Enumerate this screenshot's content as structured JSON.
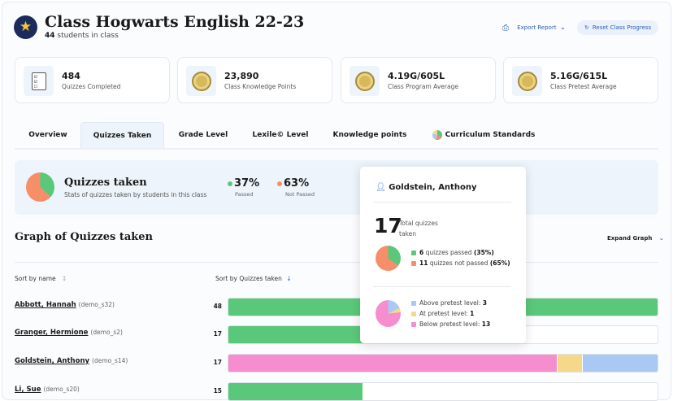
{
  "header": {
    "title": "Class Hogwarts English 22-23",
    "student_count": "44",
    "students_suffix": "students in class",
    "export_label": "Export Report",
    "reset_label": "Reset Class Progress"
  },
  "stats": [
    {
      "value": "484",
      "label": "Quizzes Completed",
      "icon": "quiz-checklist-icon"
    },
    {
      "value": "23,890",
      "label": "Class Knowledge Points",
      "icon": "medal-icon"
    },
    {
      "value": "4.19G/605L",
      "label": "Class Program Average",
      "icon": "medal-icon"
    },
    {
      "value": "5.16G/615L",
      "label": "Class Pretest Average",
      "icon": "medal-icon"
    }
  ],
  "tabs": [
    {
      "label": "Overview"
    },
    {
      "label": "Quizzes Taken",
      "active": true
    },
    {
      "label": "Grade Level"
    },
    {
      "label": "Lexile© Level"
    },
    {
      "label": "Knowledge points"
    },
    {
      "label": "Curriculum Standards"
    }
  ],
  "summary": {
    "title": "Quizzes taken",
    "subtitle": "Stats of quizzes taken by students in this class",
    "passed_pct": "37%",
    "passed_label": "Passed",
    "not_passed_pct": "63%",
    "not_passed_label": "Not Passed"
  },
  "graph": {
    "title": "Graph of Quizzes taken",
    "expand_label": "Expand Graph",
    "sort_name": "Sort by name",
    "sort_quizzes": "Sort by Quizzes taken"
  },
  "colors": {
    "passed": "#5ac87a",
    "not_passed": "#f68e6a",
    "above": "#a9c8f4",
    "at": "#f4d98a",
    "below": "#f58dce"
  },
  "rows": [
    {
      "name": "Abbott, Hannah",
      "id": "(demo_s32)",
      "count": "48",
      "quizzes": 48
    },
    {
      "name": "Granger, Hermione",
      "id": "(demo_s2)",
      "count": "17",
      "quizzes": 17
    },
    {
      "name": "Goldstein, Anthony",
      "id": "(demo_s14)",
      "count": "17",
      "quizzes": 17,
      "pretest": {
        "below": 13,
        "at": 1,
        "above": 3
      }
    },
    {
      "name": "Li, Sue",
      "id": "(demo_s20)",
      "count": "15",
      "quizzes": 15
    }
  ],
  "tooltip": {
    "student": "Goldstein, Anthony",
    "total": "17",
    "total_label_1": "Total quizzes",
    "total_label_2": "taken",
    "passed_count": "6",
    "passed_text": "quizzes passed",
    "passed_pct": "(35%)",
    "not_passed_count": "11",
    "not_passed_text": "quizzes not passed",
    "not_passed_pct": "(65%)",
    "above_label": "Above pretest level:",
    "above": "3",
    "at_label": "At pretest level:",
    "at": "1",
    "below_label": "Below pretest level:",
    "below": "13"
  }
}
